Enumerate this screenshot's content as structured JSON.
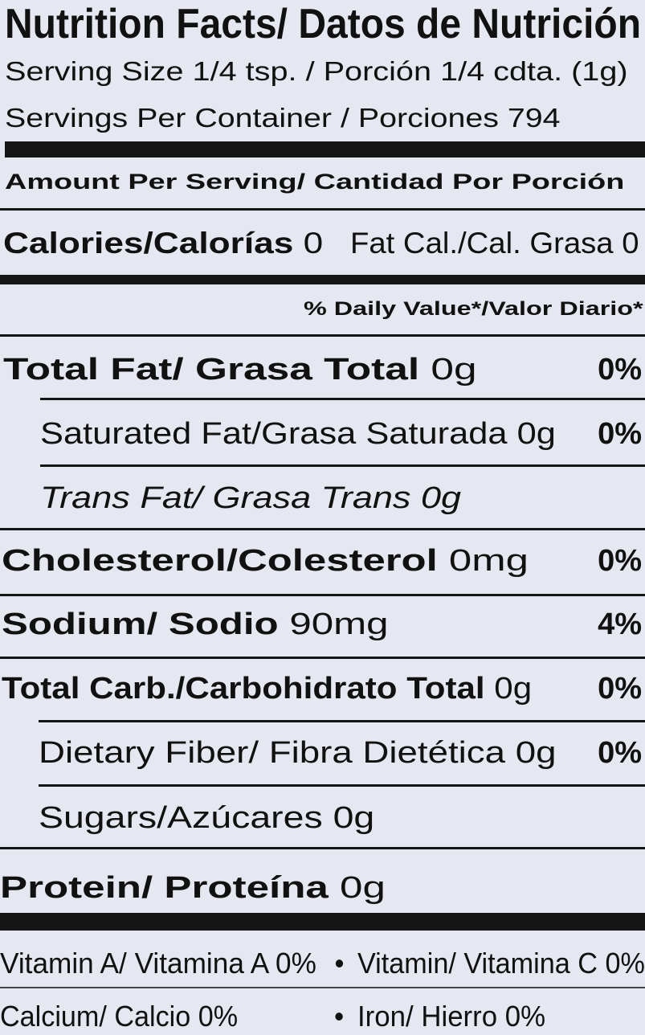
{
  "title": "Nutrition Facts/ Datos de Nutrición",
  "serving_size": "Serving Size 1/4 tsp. / Porción 1/4 cdta. (1g)",
  "servings_per_container": "Servings Per Container / Porciones 794",
  "amount_per_serving": "Amount Per Serving/ Cantidad Por Porción",
  "calories": {
    "label": "Calories/Calorías",
    "amount": "0"
  },
  "fat_calories": {
    "label": "Fat Cal./Cal. Grasa",
    "amount": "0"
  },
  "daily_value_header": "% Daily Value*/Valor Diario*",
  "nutrients": [
    {
      "label": "Total Fat/ Grasa Total",
      "amount": "0g",
      "daily_value": "0%"
    },
    {
      "label": "Saturated Fat/Grasa Saturada",
      "amount": "0g",
      "daily_value": "0%"
    },
    {
      "label": "Trans Fat/ Grasa Trans",
      "amount": "0g"
    },
    {
      "label": "Cholesterol/Colesterol",
      "amount": "0mg",
      "daily_value": "0%"
    },
    {
      "label": "Sodium/ Sodio",
      "amount": "90mg",
      "daily_value": "4%"
    },
    {
      "label": "Total Carb./Carbohidrato Total",
      "amount": "0g",
      "daily_value": "0%"
    },
    {
      "label": "Dietary Fiber/ Fibra Dietética",
      "amount": "0g",
      "daily_value": "0%"
    },
    {
      "label": "Sugars/Azúcares",
      "amount": "0g"
    },
    {
      "label": "Protein/ Proteína",
      "amount": "0g"
    }
  ],
  "vitamins": [
    "Vitamin A/ Vitamina A 0%",
    "Vitamin/ Vitamina C 0%",
    "Calcium/ Calcio 0%",
    "Iron/ Hierro 0%"
  ]
}
